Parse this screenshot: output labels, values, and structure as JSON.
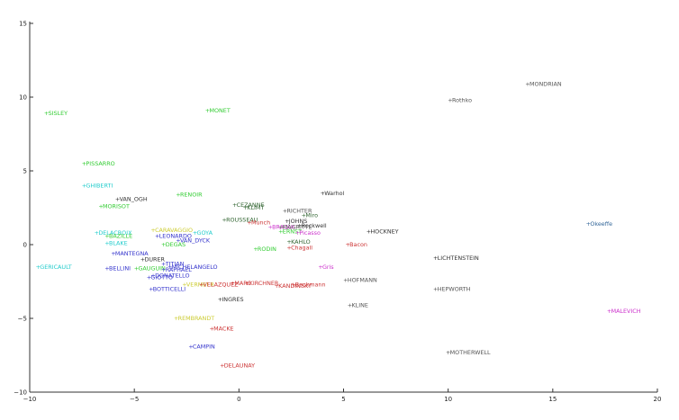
{
  "chart_data": {
    "type": "scatter",
    "title": "",
    "xlabel": "",
    "ylabel": "",
    "xlim": [
      -10,
      20
    ],
    "ylim": [
      -10,
      15
    ],
    "grid": false,
    "xticks": [
      -10,
      -5,
      0,
      5,
      10,
      15,
      20
    ],
    "yticks": [
      -10,
      -5,
      0,
      5,
      10,
      15
    ],
    "xtick_labels": [
      "−10",
      "−5",
      "0",
      "5",
      "10",
      "15",
      "20"
    ],
    "ytick_labels": [
      "−10",
      "−5",
      "0",
      "5",
      "10",
      "15"
    ],
    "points": [
      {
        "label": "MONDRIAN",
        "x": 13.8,
        "y": 10.9,
        "color": "#555555"
      },
      {
        "label": "Rothko",
        "x": 10.1,
        "y": 9.8,
        "color": "#555555"
      },
      {
        "label": "SISLEY",
        "x": -9.2,
        "y": 8.9,
        "color": "#33cc33"
      },
      {
        "label": "MONET",
        "x": -1.5,
        "y": 9.1,
        "color": "#33cc33"
      },
      {
        "label": "PISSARRO",
        "x": -7.4,
        "y": 5.5,
        "color": "#33cc33"
      },
      {
        "label": "GHIBERTI",
        "x": -7.4,
        "y": 4.0,
        "color": "#22cccc"
      },
      {
        "label": "RENOIR",
        "x": -2.9,
        "y": 3.4,
        "color": "#33cc33"
      },
      {
        "label": "VAN_OGH",
        "x": -5.8,
        "y": 3.1,
        "color": "#333333"
      },
      {
        "label": "MORISOT",
        "x": -6.6,
        "y": 2.6,
        "color": "#33cc33"
      },
      {
        "label": "Warhol",
        "x": 4.0,
        "y": 3.5,
        "color": "#333333"
      },
      {
        "label": "CEZANNE",
        "x": -0.2,
        "y": 2.7,
        "color": "#336633"
      },
      {
        "label": "KLIMT",
        "x": 0.3,
        "y": 2.5,
        "color": "#336633"
      },
      {
        "label": "RICHTER",
        "x": 2.2,
        "y": 2.3,
        "color": "#555555"
      },
      {
        "label": "Miro",
        "x": 3.1,
        "y": 2.0,
        "color": "#336633"
      },
      {
        "label": "ROUSSEAU",
        "x": -0.7,
        "y": 1.7,
        "color": "#336633"
      },
      {
        "label": "Munch",
        "x": 0.5,
        "y": 1.5,
        "color": "#cc3333"
      },
      {
        "label": "JOHNS",
        "x": 2.3,
        "y": 1.6,
        "color": "#333333"
      },
      {
        "label": "Rockwell",
        "x": 2.9,
        "y": 1.3,
        "color": "#333333"
      },
      {
        "label": "BRAQUE",
        "x": 1.5,
        "y": 1.2,
        "color": "#cc33cc"
      },
      {
        "label": "MAGRITTE",
        "x": 2.0,
        "y": 1.2,
        "color": "#555555"
      },
      {
        "label": "ERNST",
        "x": 2.0,
        "y": 0.9,
        "color": "#33cc33"
      },
      {
        "label": "Picasso",
        "x": 2.8,
        "y": 0.8,
        "color": "#cc33cc"
      },
      {
        "label": "HOCKNEY",
        "x": 6.2,
        "y": 0.9,
        "color": "#333333"
      },
      {
        "label": "Okeeffe",
        "x": 16.7,
        "y": 1.4,
        "color": "#336699"
      },
      {
        "label": "CARAVAGGIO",
        "x": -4.1,
        "y": 1.0,
        "color": "#cccc33"
      },
      {
        "label": "GOYA",
        "x": -2.1,
        "y": 0.8,
        "color": "#22cccc"
      },
      {
        "label": "DELACROIX",
        "x": -6.8,
        "y": 0.8,
        "color": "#22cccc"
      },
      {
        "label": "BAZILLE",
        "x": -6.3,
        "y": 0.6,
        "color": "#33cc33"
      },
      {
        "label": "LEONARDO",
        "x": -3.9,
        "y": 0.6,
        "color": "#3333cc"
      },
      {
        "label": "VAN_DYCK",
        "x": -2.9,
        "y": 0.3,
        "color": "#3333cc"
      },
      {
        "label": "KAHLO",
        "x": 2.4,
        "y": 0.2,
        "color": "#336633"
      },
      {
        "label": "BLAKE",
        "x": -6.3,
        "y": 0.1,
        "color": "#22cccc"
      },
      {
        "label": "DEGAS",
        "x": -3.6,
        "y": 0.0,
        "color": "#33cc33"
      },
      {
        "label": "Bacon",
        "x": 5.2,
        "y": 0.0,
        "color": "#cc3333"
      },
      {
        "label": "Chagall",
        "x": 2.4,
        "y": -0.2,
        "color": "#cc3333"
      },
      {
        "label": "RODIN",
        "x": 0.8,
        "y": -0.3,
        "color": "#33cc33"
      },
      {
        "label": "MANTEGNA",
        "x": -6.0,
        "y": -0.6,
        "color": "#3333cc"
      },
      {
        "label": "LICHTENSTEIN",
        "x": 9.4,
        "y": -0.9,
        "color": "#333333"
      },
      {
        "label": "DURER",
        "x": -4.6,
        "y": -1.0,
        "color": "#333333"
      },
      {
        "label": "TITIAN",
        "x": -3.6,
        "y": -1.3,
        "color": "#3333cc"
      },
      {
        "label": "MICHELANGELO",
        "x": -3.3,
        "y": -1.5,
        "color": "#3333cc"
      },
      {
        "label": "GERICAULT",
        "x": -9.6,
        "y": -1.5,
        "color": "#22cccc"
      },
      {
        "label": "BELLINI",
        "x": -6.3,
        "y": -1.6,
        "color": "#3333cc"
      },
      {
        "label": "GAUGUIN",
        "x": -4.9,
        "y": -1.6,
        "color": "#33cc33"
      },
      {
        "label": "RAPHAEL",
        "x": -3.6,
        "y": -1.7,
        "color": "#3333cc"
      },
      {
        "label": "Gris",
        "x": 3.9,
        "y": -1.5,
        "color": "#cc33cc"
      },
      {
        "label": "GIOTTO",
        "x": -4.3,
        "y": -2.2,
        "color": "#3333cc"
      },
      {
        "label": "DONATELLO",
        "x": -4.1,
        "y": -2.1,
        "color": "#3333cc"
      },
      {
        "label": "HOFMANN",
        "x": 5.1,
        "y": -2.4,
        "color": "#555555"
      },
      {
        "label": "VERMEER",
        "x": -2.6,
        "y": -2.7,
        "color": "#cccc33"
      },
      {
        "label": "VELAZQUEZ",
        "x": -1.8,
        "y": -2.7,
        "color": "#cc3333"
      },
      {
        "label": "MARC",
        "x": -0.3,
        "y": -2.6,
        "color": "#cc3333"
      },
      {
        "label": "KIRCHNER",
        "x": 0.4,
        "y": -2.6,
        "color": "#cc3333"
      },
      {
        "label": "KANDINSKY",
        "x": 1.8,
        "y": -2.8,
        "color": "#cc3333"
      },
      {
        "label": "Beckmann",
        "x": 2.6,
        "y": -2.7,
        "color": "#cc3333"
      },
      {
        "label": "BOTTICELLI",
        "x": -4.2,
        "y": -3.0,
        "color": "#3333cc"
      },
      {
        "label": "HEPWORTH",
        "x": 9.4,
        "y": -3.0,
        "color": "#555555"
      },
      {
        "label": "INGRES",
        "x": -0.9,
        "y": -3.7,
        "color": "#333333"
      },
      {
        "label": "KLINE",
        "x": 5.3,
        "y": -4.1,
        "color": "#555555"
      },
      {
        "label": "MALEVICH",
        "x": 17.7,
        "y": -4.5,
        "color": "#cc33cc"
      },
      {
        "label": "REMBRANDT",
        "x": -3.0,
        "y": -5.0,
        "color": "#cccc33"
      },
      {
        "label": "MACKE",
        "x": -1.3,
        "y": -5.7,
        "color": "#cc3333"
      },
      {
        "label": "CAMPIN",
        "x": -2.3,
        "y": -6.9,
        "color": "#3333cc"
      },
      {
        "label": "MOTHERWELL",
        "x": 10.0,
        "y": -7.3,
        "color": "#555555"
      },
      {
        "label": "DELAUNAY",
        "x": -0.8,
        "y": -8.2,
        "color": "#cc3333"
      }
    ]
  }
}
